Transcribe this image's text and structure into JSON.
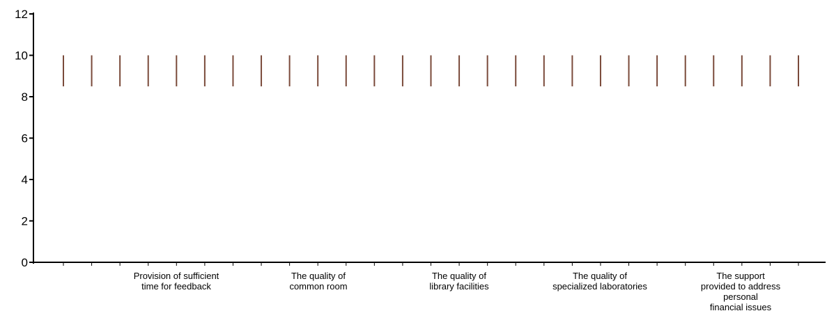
{
  "chart_data": {
    "type": "bar",
    "title": "",
    "xlabel": "",
    "ylabel": "",
    "ylim": [
      0,
      12
    ],
    "yticks": [
      0,
      2,
      4,
      6,
      8,
      10,
      12
    ],
    "grid": false,
    "legend": "none",
    "bar_count": 27,
    "bar_range": [
      8.5,
      10
    ],
    "category_labels": [
      [
        "Provision of sufficient",
        "time for feedback"
      ],
      [
        "The quality of",
        "common room"
      ],
      [
        "The quality of",
        "library facilities"
      ],
      [
        "The quality of",
        "specialized laboratories"
      ],
      [
        "The support",
        "provided to address",
        "personal",
        "financial issues"
      ]
    ],
    "colors": {
      "bar": "#7a4a3a",
      "axis": "#000000"
    }
  }
}
